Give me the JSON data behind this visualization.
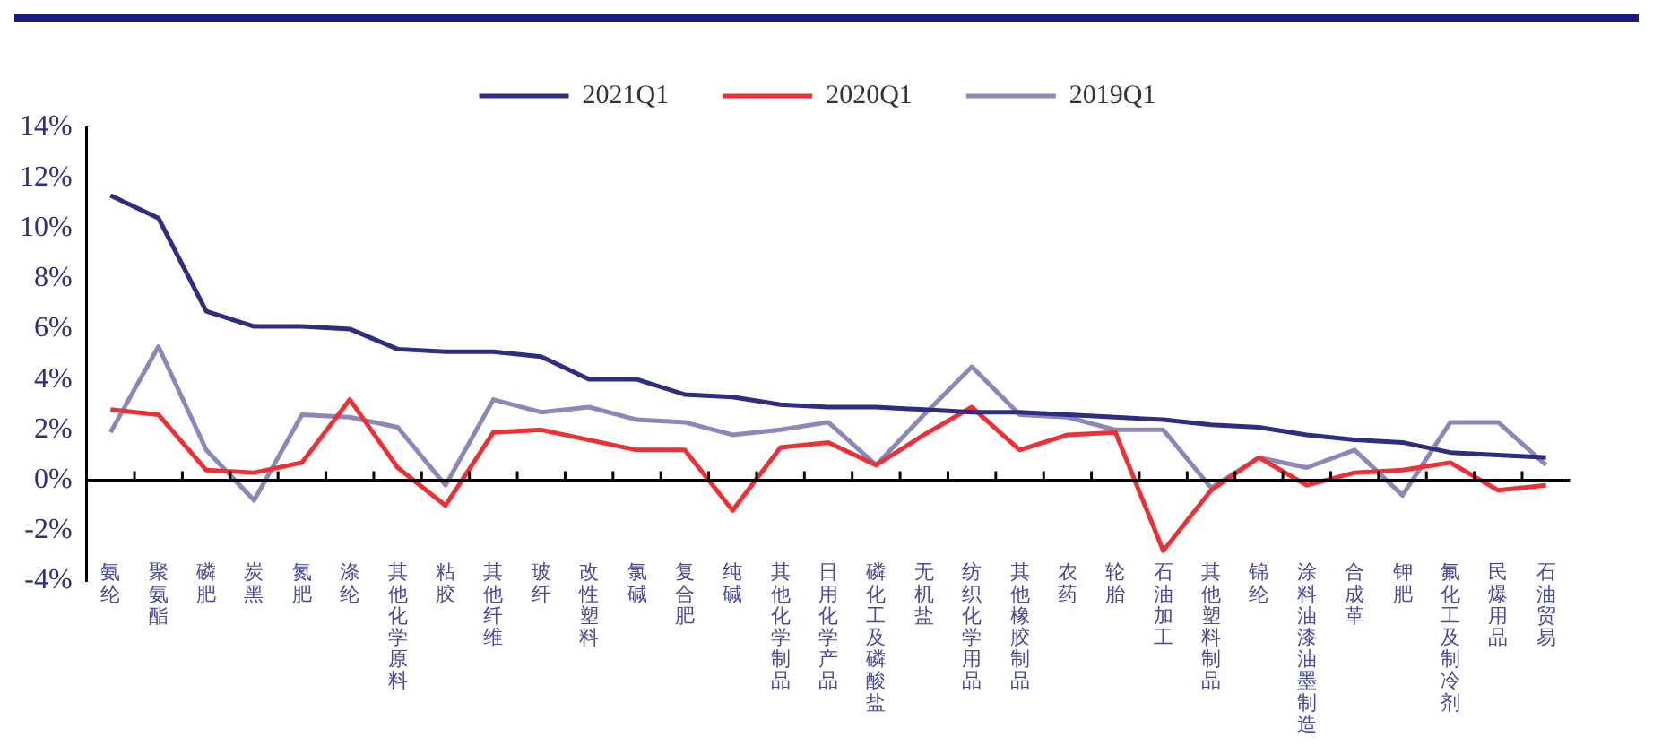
{
  "chart_data": {
    "type": "line",
    "categories": [
      "氨纶",
      "聚氨酯",
      "磷肥",
      "炭黑",
      "氮肥",
      "涤纶",
      "其他化学原料",
      "粘胶",
      "其他纤维",
      "玻纤",
      "改性塑料",
      "氯碱",
      "复合肥",
      "纯碱",
      "其他化学制品",
      "日用化学产品",
      "磷化工及磷酸盐",
      "无机盐",
      "纺织化学用品",
      "其他橡胶制品",
      "农药",
      "轮胎",
      "石油加工",
      "其他塑料制品",
      "锦纶",
      "涂料油漆油墨制造",
      "合成革",
      "钾肥",
      "氟化工及制冷剂",
      "民爆用品",
      "石油贸易"
    ],
    "series": [
      {
        "name": "2021Q1",
        "color": "#2e2d7f",
        "values": [
          11.3,
          10.4,
          6.7,
          6.1,
          6.1,
          6.0,
          5.2,
          5.1,
          5.1,
          4.9,
          4.0,
          4.0,
          3.4,
          3.3,
          3.0,
          2.9,
          2.9,
          2.8,
          2.7,
          2.7,
          2.6,
          2.5,
          2.4,
          2.2,
          2.1,
          1.8,
          1.6,
          1.5,
          1.1,
          1.0,
          0.9
        ]
      },
      {
        "name": "2020Q1",
        "color": "#ee3035",
        "values": [
          2.8,
          2.6,
          0.4,
          0.3,
          0.7,
          3.2,
          0.5,
          -1.0,
          1.9,
          2.0,
          1.6,
          1.2,
          1.2,
          -1.2,
          1.3,
          1.5,
          0.6,
          1.8,
          2.9,
          1.2,
          1.8,
          1.9,
          -2.8,
          -0.4,
          0.9,
          -0.2,
          0.3,
          0.4,
          0.7,
          -0.4,
          -0.2
        ]
      },
      {
        "name": "2019Q1",
        "color": "#8a88b8",
        "values": [
          1.9,
          5.3,
          1.2,
          -0.8,
          2.6,
          2.5,
          2.1,
          -0.2,
          3.2,
          2.7,
          2.9,
          2.4,
          2.3,
          1.8,
          2.0,
          2.3,
          0.6,
          2.6,
          4.5,
          2.6,
          2.5,
          2.0,
          2.0,
          -0.3,
          0.9,
          0.5,
          1.2,
          -0.6,
          2.3,
          2.3,
          0.6
        ]
      }
    ],
    "ylim": [
      -4,
      14
    ],
    "yticks": [
      {
        "value": -4,
        "label": "-4%"
      },
      {
        "value": -2,
        "label": "-2%"
      },
      {
        "value": 0,
        "label": "0%"
      },
      {
        "value": 2,
        "label": "2%"
      },
      {
        "value": 4,
        "label": "4%"
      },
      {
        "value": 6,
        "label": "6%"
      },
      {
        "value": 8,
        "label": "8%"
      },
      {
        "value": 10,
        "label": "10%"
      },
      {
        "value": 12,
        "label": "12%"
      },
      {
        "value": 14,
        "label": "14%"
      }
    ],
    "ref_lines": [
      {
        "axis": "y",
        "value": 0,
        "color": "#000000"
      }
    ],
    "grid": false,
    "legend": "top",
    "marker": "none",
    "line_style": "solid"
  }
}
